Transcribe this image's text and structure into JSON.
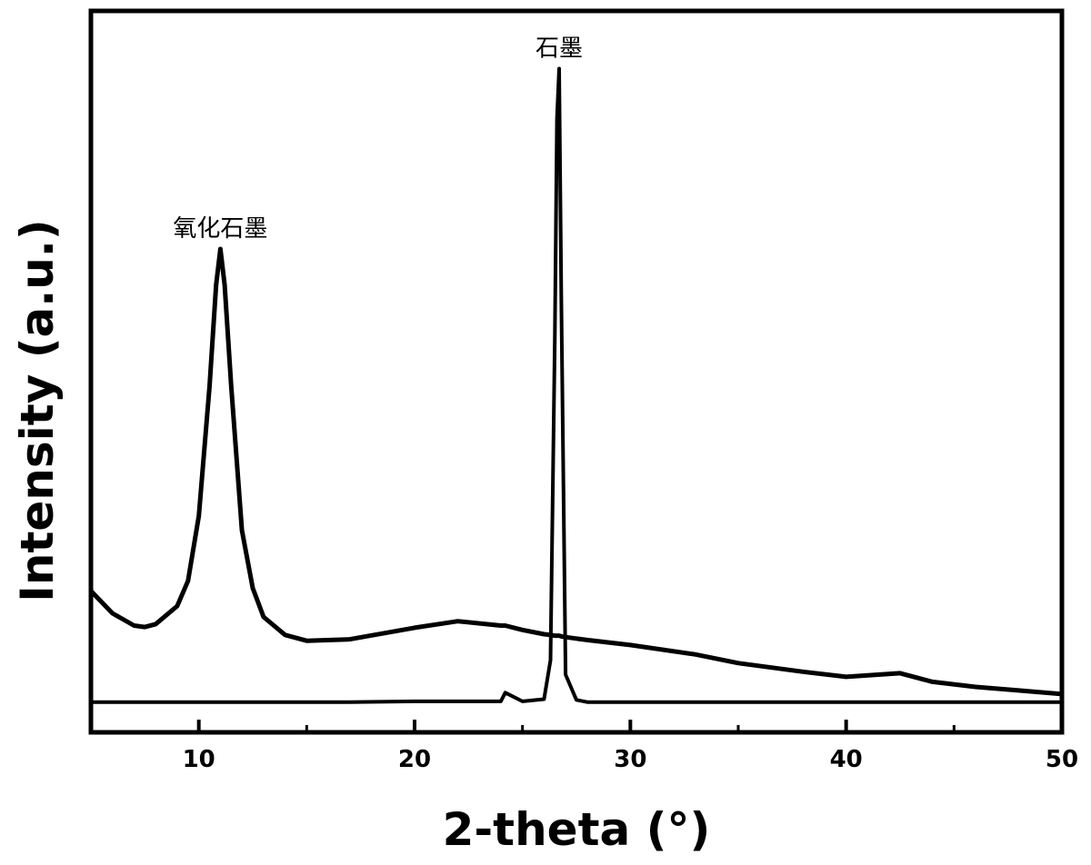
{
  "chart_data": {
    "type": "line",
    "x_label": "2-theta (°)",
    "y_label": "Intensity (a.u.)",
    "x": [
      5,
      6,
      7,
      7.5,
      8,
      9,
      9.5,
      10,
      10.5,
      10.8,
      11,
      11.2,
      11.5,
      12,
      12.5,
      13,
      14,
      15,
      17,
      20,
      22,
      24,
      24.2,
      25,
      26,
      26.3,
      26.5,
      26.6,
      26.7,
      26.8,
      27,
      27.5,
      28,
      30,
      33,
      35,
      38,
      40,
      42.5,
      44,
      46,
      48,
      50
    ],
    "series": [
      {
        "name": "氧化石墨",
        "color": "#000000",
        "values": [
          19.6,
          16.5,
          14.8,
          14.6,
          15,
          17.5,
          21,
          30,
          48,
          62,
          67,
          62,
          48,
          28,
          20,
          16,
          13.5,
          12.7,
          12.9,
          14.5,
          15.4,
          14.8,
          14.8,
          14.2,
          13.6,
          13.5,
          13.4,
          13.4,
          13.4,
          13.3,
          13.2,
          13,
          12.8,
          12.1,
          10.8,
          9.6,
          8.4,
          7.7,
          8.2,
          7,
          6.3,
          5.8,
          5.3
        ]
      },
      {
        "name": "石墨",
        "color": "#000000",
        "values": [
          4.2,
          4.2,
          4.2,
          4.2,
          4.2,
          4.2,
          4.2,
          4.2,
          4.2,
          4.2,
          4.2,
          4.2,
          4.2,
          4.2,
          4.2,
          4.2,
          4.2,
          4.2,
          4.2,
          4.3,
          4.3,
          4.3,
          5.5,
          4.3,
          4.6,
          10,
          55,
          85,
          92,
          60,
          8,
          4.5,
          4.2,
          4.2,
          4.2,
          4.2,
          4.2,
          4.2,
          4.2,
          4.2,
          4.2,
          4.2,
          4.2
        ]
      }
    ],
    "xlim": [
      5,
      50
    ],
    "xticks": [
      10,
      20,
      30,
      40,
      50
    ],
    "xminorticks": [
      15,
      25,
      35,
      45
    ],
    "ylim": [
      0,
      100
    ],
    "legend": false
  }
}
